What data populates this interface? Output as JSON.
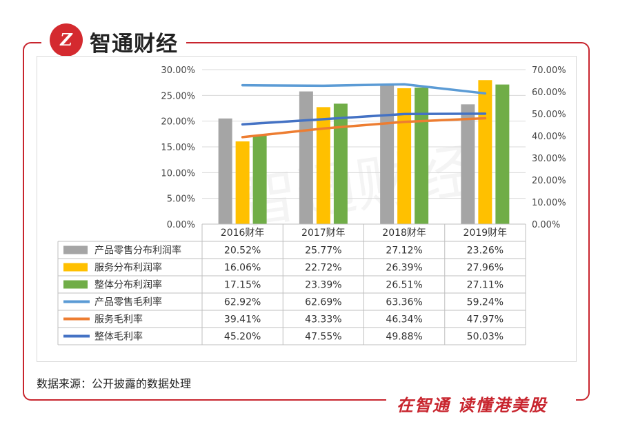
{
  "header": {
    "logo_mark": "Z",
    "logo_text": "智通财经"
  },
  "watermark": "智通财经",
  "source_note": "数据来源：公开披露的数据处理",
  "slogan": "在智通 读懂港美股",
  "colors": {
    "frame": "#c8252e",
    "gray": "#a5a5a5",
    "orange_bar": "#ffc000",
    "green": "#70ad47",
    "light_blue": "#5b9bd5",
    "orange_line": "#ed7d31",
    "dark_blue": "#4472c4"
  },
  "chart_data": {
    "type": "bar",
    "categories": [
      "2016财年",
      "2017财年",
      "2018财年",
      "2019财年"
    ],
    "y_left": {
      "min": 0,
      "max": 30,
      "step": 5,
      "tick_labels": [
        "0.00%",
        "5.00%",
        "10.00%",
        "15.00%",
        "20.00%",
        "25.00%",
        "30.00%"
      ]
    },
    "y_right": {
      "min": 0,
      "max": 70,
      "step": 10,
      "tick_labels": [
        "0.00%",
        "10.00%",
        "20.00%",
        "30.00%",
        "40.00%",
        "50.00%",
        "60.00%",
        "70.00%"
      ]
    },
    "grid": true,
    "legend": "data-table",
    "series": [
      {
        "name": "产品零售分布利润率",
        "kind": "bar",
        "axis": "left",
        "color": "#a5a5a5",
        "values": [
          20.52,
          25.77,
          27.12,
          23.26
        ],
        "labels": [
          "20.52%",
          "25.77%",
          "27.12%",
          "23.26%"
        ]
      },
      {
        "name": "服务分布利润率",
        "kind": "bar",
        "axis": "left",
        "color": "#ffc000",
        "values": [
          16.06,
          22.72,
          26.39,
          27.96
        ],
        "labels": [
          "16.06%",
          "22.72%",
          "26.39%",
          "27.96%"
        ]
      },
      {
        "name": "整体分布利润率",
        "kind": "bar",
        "axis": "left",
        "color": "#70ad47",
        "values": [
          17.15,
          23.39,
          26.51,
          27.11
        ],
        "labels": [
          "17.15%",
          "23.39%",
          "26.51%",
          "27.11%"
        ]
      },
      {
        "name": "产品零售毛利率",
        "kind": "line",
        "axis": "right",
        "color": "#5b9bd5",
        "values": [
          62.92,
          62.69,
          63.36,
          59.24
        ],
        "labels": [
          "62.92%",
          "62.69%",
          "63.36%",
          "59.24%"
        ]
      },
      {
        "name": "服务毛利率",
        "kind": "line",
        "axis": "right",
        "color": "#ed7d31",
        "values": [
          39.41,
          43.33,
          46.34,
          47.97
        ],
        "labels": [
          "39.41%",
          "43.33%",
          "46.34%",
          "47.97%"
        ]
      },
      {
        "name": "整体毛利率",
        "kind": "line",
        "axis": "right",
        "color": "#4472c4",
        "values": [
          45.2,
          47.55,
          49.88,
          50.03
        ],
        "labels": [
          "45.20%",
          "47.55%",
          "49.88%",
          "50.03%"
        ]
      }
    ]
  }
}
